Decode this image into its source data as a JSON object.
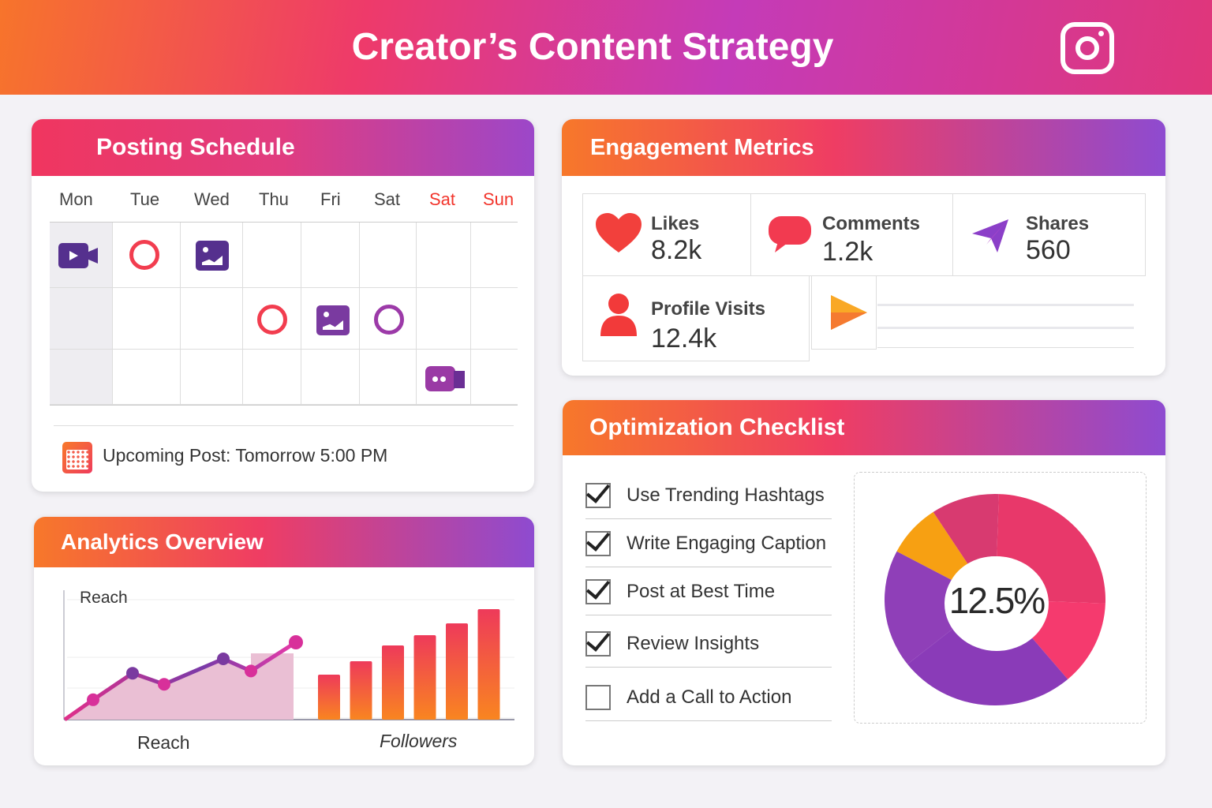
{
  "header": {
    "title": "Creator’s Content Strategy",
    "logo": "instagram-icon"
  },
  "schedule": {
    "title": "Posting Schedule",
    "days": [
      "Mon",
      "Tue",
      "Wed",
      "Thu",
      "Fri",
      "Sat",
      "Sat",
      "Sun"
    ],
    "weekend_color": "#f2352c",
    "upcoming": "Upcoming Post: Tomorrow 5:00 PM"
  },
  "engagement": {
    "title": "Engagement Metrics",
    "likes": {
      "label": "Likes",
      "value": "8.2k"
    },
    "comments": {
      "label": "Comments",
      "value": "1.2k"
    },
    "shares": {
      "label": "Shares",
      "value": "560"
    },
    "profile": {
      "label": "Profile Visits",
      "value": "12.4k"
    }
  },
  "analytics": {
    "title": "Analytics Overview",
    "reach_label": "Reach",
    "followers_label": "Followers"
  },
  "checklist": {
    "title": "Optimization Checklist",
    "items": [
      {
        "label": "Use Trending Hashtags",
        "checked": true
      },
      {
        "label": "Write Engaging Caption",
        "checked": true
      },
      {
        "label": "Post at Best Time",
        "checked": true
      },
      {
        "label": "Review Insights",
        "checked": true
      },
      {
        "label": "Add a Call to Action",
        "checked": false
      }
    ],
    "donut_center": "12.5%"
  },
  "chart_data": [
    {
      "type": "area",
      "title": "Reach",
      "xlabel": "Reach",
      "values": [
        0,
        18,
        42,
        32,
        55,
        44,
        70
      ]
    },
    {
      "type": "bar",
      "xlabel": "Followers",
      "values": [
        57,
        74,
        94,
        107,
        122,
        140
      ]
    },
    {
      "type": "pie",
      "center_label": "12.5%",
      "values": [
        25,
        13,
        26,
        18,
        8,
        10
      ],
      "colors": [
        "#e8386a",
        "#f53a6e",
        "#8a3bb8",
        "#8f3fb8",
        "#f7a012",
        "#d83a70"
      ]
    }
  ]
}
